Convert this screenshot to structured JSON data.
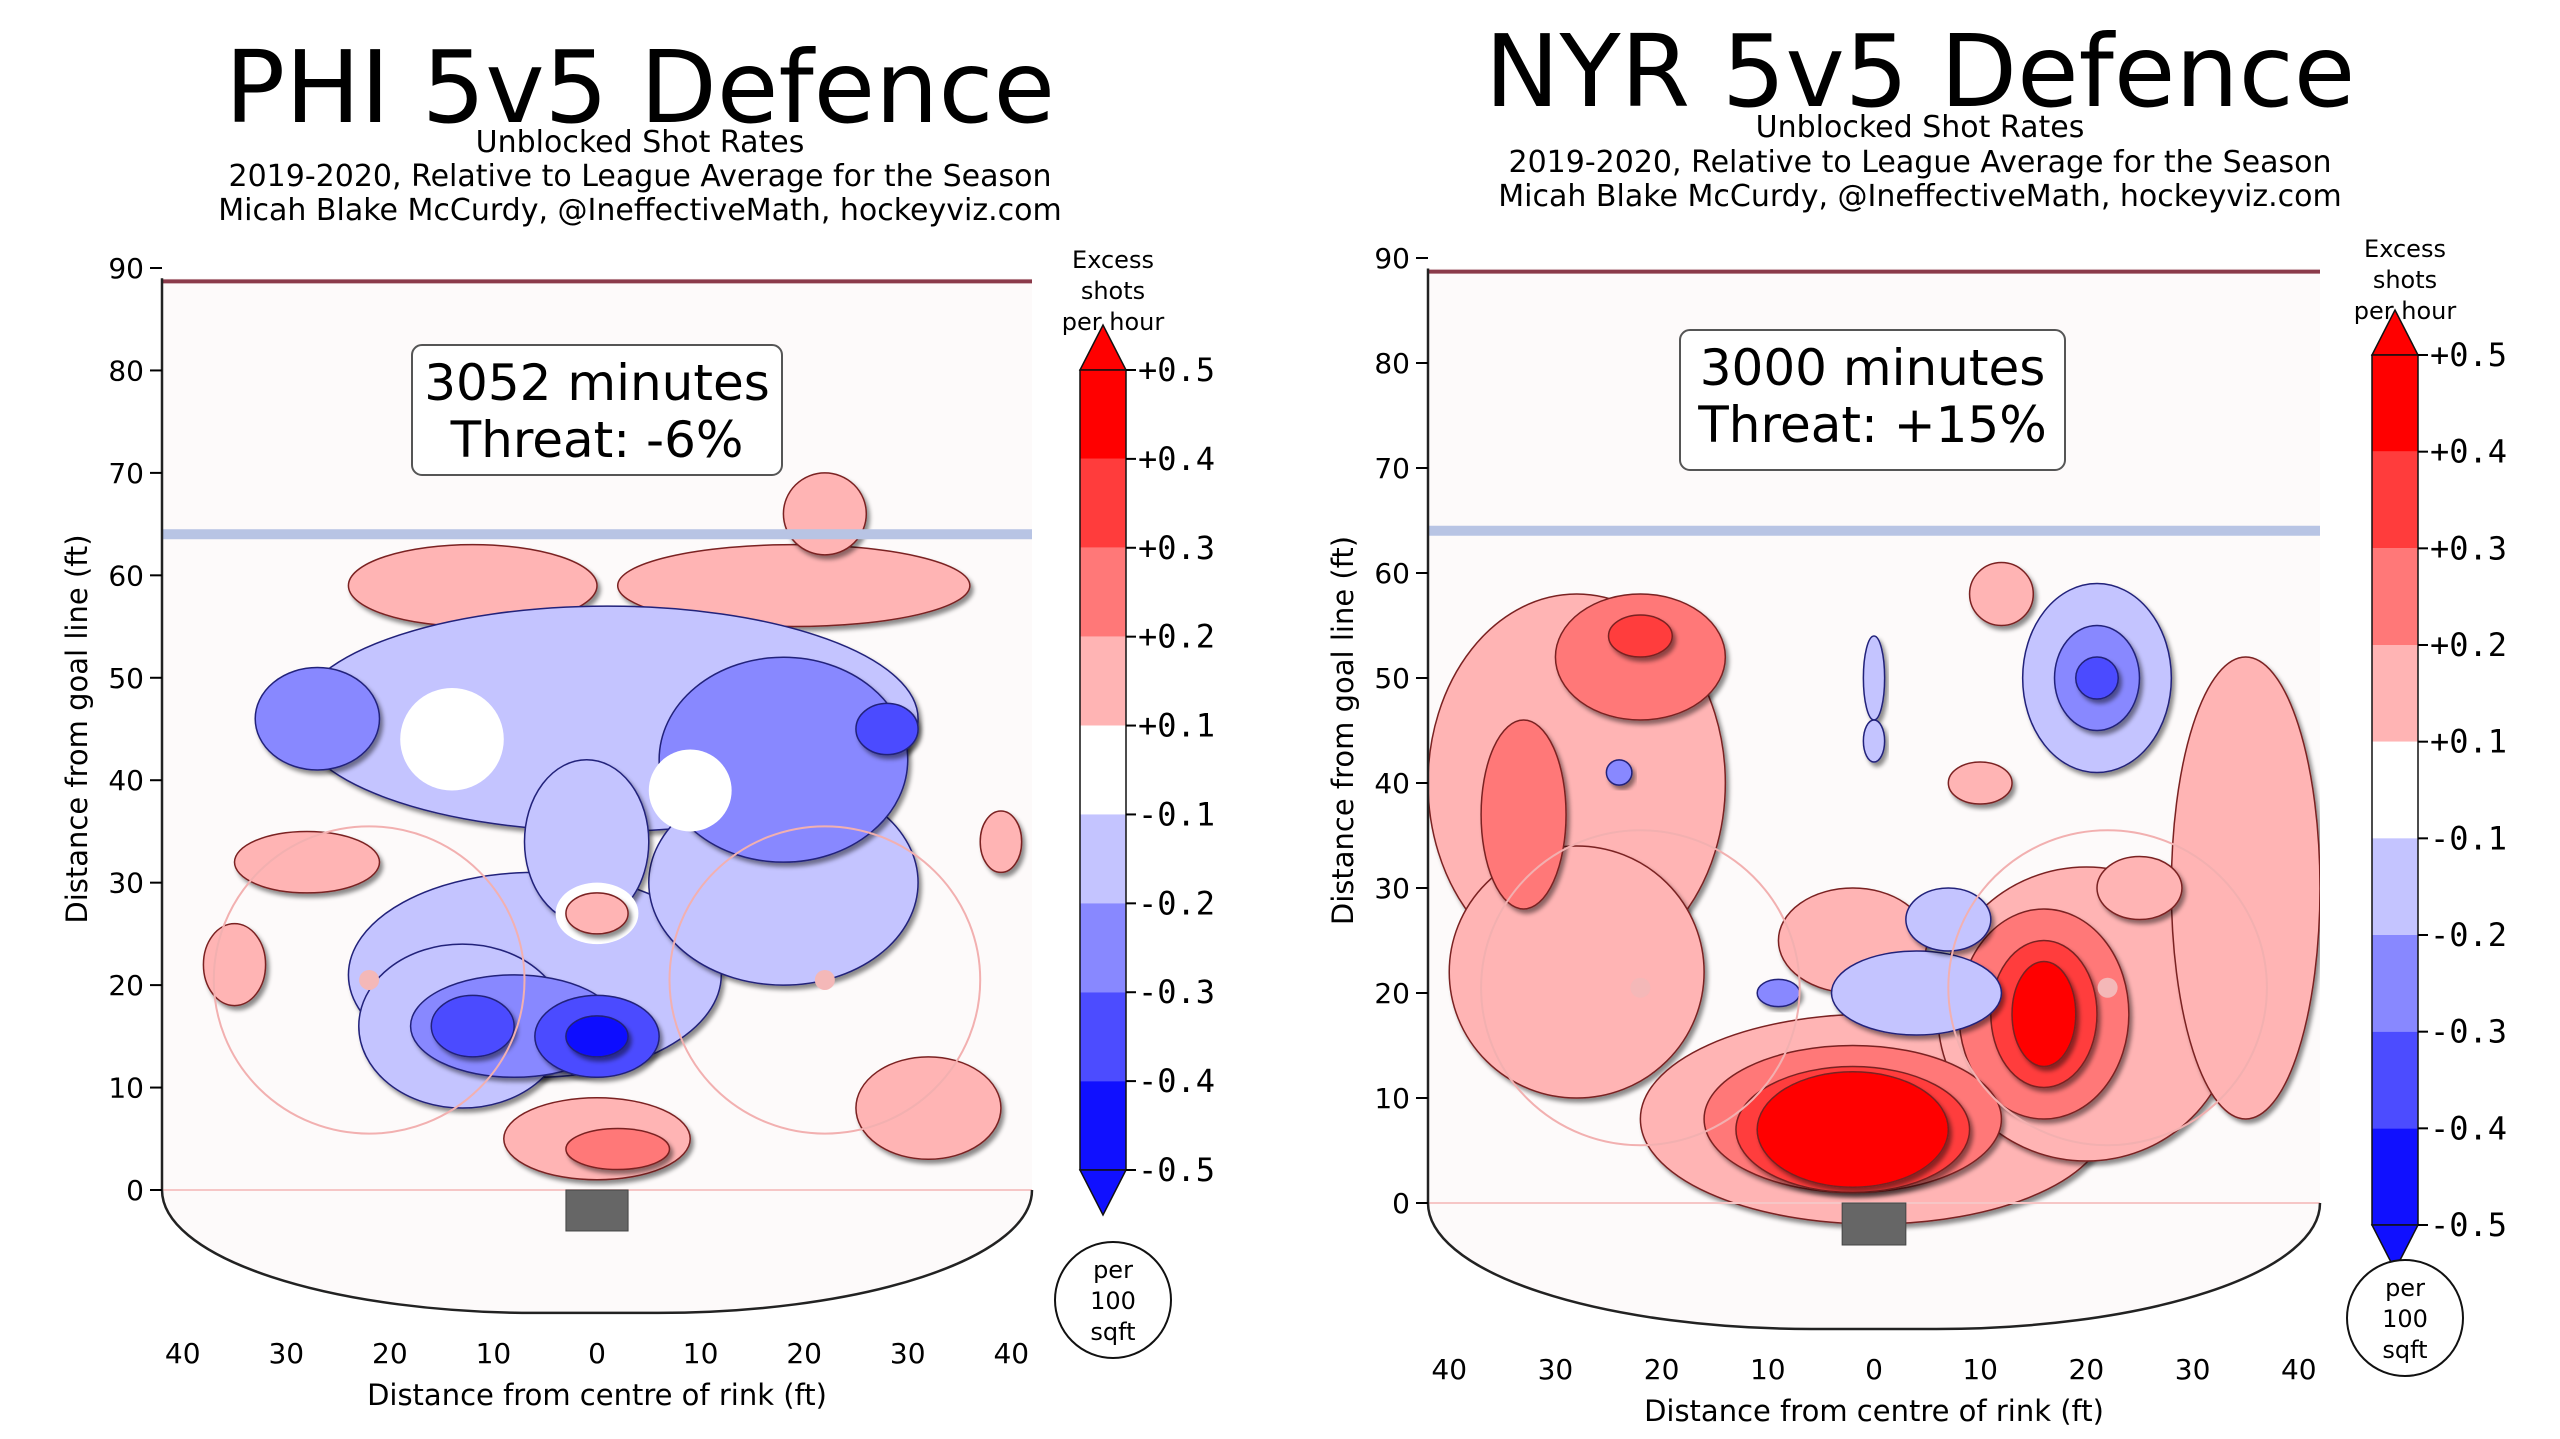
{
  "chart_data": [
    {
      "type": "heatmap",
      "title": "PHI 5v5 Defence",
      "subtitle_lines": [
        "Unblocked Shot Rates",
        "2019-2020, Relative to League Average for the Season",
        "Micah Blake McCurdy, @IneffectiveMath, hockeyviz.com"
      ],
      "xlabel": "Distance from centre of rink (ft)",
      "ylabel": "Distance from goal line (ft)",
      "xticks": [
        "40",
        "30",
        "20",
        "10",
        "0",
        "10",
        "20",
        "30",
        "40"
      ],
      "yticks": [
        "0",
        "10",
        "20",
        "30",
        "40",
        "50",
        "60",
        "70",
        "80",
        "90"
      ],
      "xlim": [
        -42,
        42
      ],
      "ylim": [
        -12,
        90
      ],
      "annotation": {
        "minutes": "3052 minutes",
        "threat": "Threat: -6%"
      },
      "colorbar": {
        "title_lines": [
          "Excess",
          "shots",
          "per hour"
        ],
        "ticks": [
          "+0.5",
          "+0.4",
          "+0.3",
          "+0.2",
          "+0.1",
          "-0.1",
          "-0.2",
          "-0.3",
          "-0.4",
          "-0.5"
        ],
        "unit_lines": [
          "per",
          "100",
          "sqft"
        ]
      },
      "blobs": [
        {
          "x": -12,
          "y": 59,
          "rx": 12,
          "ry": 4,
          "v": 0.15
        },
        {
          "x": 19,
          "y": 59,
          "rx": 17,
          "ry": 4,
          "v": 0.15
        },
        {
          "x": 22,
          "y": 66,
          "rx": 4,
          "ry": 4,
          "v": 0.15
        },
        {
          "x": 1,
          "y": 46,
          "rx": 30,
          "ry": 11,
          "v": -0.15
        },
        {
          "x": -6,
          "y": 21,
          "rx": 18,
          "ry": 10,
          "v": -0.15
        },
        {
          "x": 18,
          "y": 30,
          "rx": 13,
          "ry": 10,
          "v": -0.15
        },
        {
          "x": -1,
          "y": 34,
          "rx": 6,
          "ry": 8,
          "v": -0.15
        },
        {
          "x": -13,
          "y": 16,
          "rx": 10,
          "ry": 8,
          "v": -0.15
        },
        {
          "x": 18,
          "y": 42,
          "rx": 12,
          "ry": 10,
          "v": -0.25
        },
        {
          "x": -27,
          "y": 46,
          "rx": 6,
          "ry": 5,
          "v": -0.25
        },
        {
          "x": -8,
          "y": 16,
          "rx": 10,
          "ry": 5,
          "v": -0.25
        },
        {
          "x": 0,
          "y": 15,
          "rx": 6,
          "ry": 4,
          "v": -0.35
        },
        {
          "x": -12,
          "y": 16,
          "rx": 4,
          "ry": 3,
          "v": -0.35
        },
        {
          "x": 28,
          "y": 45,
          "rx": 3,
          "ry": 2.5,
          "v": -0.35
        },
        {
          "x": 0,
          "y": 15,
          "rx": 3,
          "ry": 2,
          "v": -0.45
        },
        {
          "x": -14,
          "y": 44,
          "rx": 5,
          "ry": 5,
          "v": 0
        },
        {
          "x": 9,
          "y": 39,
          "rx": 4,
          "ry": 4,
          "v": 0
        },
        {
          "x": 0,
          "y": 27,
          "rx": 4,
          "ry": 3,
          "v": 0
        },
        {
          "x": 0,
          "y": 27,
          "rx": 3,
          "ry": 2,
          "v": 0.15
        },
        {
          "x": 0,
          "y": 5,
          "rx": 9,
          "ry": 4,
          "v": 0.15
        },
        {
          "x": 2,
          "y": 4,
          "rx": 5,
          "ry": 2,
          "v": 0.25
        },
        {
          "x": -35,
          "y": 22,
          "rx": 3,
          "ry": 4,
          "v": 0.15
        },
        {
          "x": -28,
          "y": 32,
          "rx": 7,
          "ry": 3,
          "v": 0.15
        },
        {
          "x": 32,
          "y": 8,
          "rx": 7,
          "ry": 5,
          "v": 0.15
        },
        {
          "x": 39,
          "y": 34,
          "rx": 2,
          "ry": 3,
          "v": 0.15
        }
      ]
    },
    {
      "type": "heatmap",
      "title": "NYR 5v5 Defence",
      "subtitle_lines": [
        "Unblocked Shot Rates",
        "2019-2020, Relative to League Average for the Season",
        "Micah Blake McCurdy, @IneffectiveMath, hockeyviz.com"
      ],
      "xlabel": "Distance from centre of rink (ft)",
      "ylabel": "Distance from goal line (ft)",
      "xticks": [
        "40",
        "30",
        "20",
        "10",
        "0",
        "10",
        "20",
        "30",
        "40"
      ],
      "yticks": [
        "0",
        "10",
        "20",
        "30",
        "40",
        "50",
        "60",
        "70",
        "80",
        "90"
      ],
      "xlim": [
        -42,
        42
      ],
      "ylim": [
        -12,
        90
      ],
      "annotation": {
        "minutes": "3000 minutes",
        "threat": "Threat: +15%"
      },
      "colorbar": {
        "title_lines": [
          "Excess",
          "shots",
          "per hour"
        ],
        "ticks": [
          "+0.5",
          "+0.4",
          "+0.3",
          "+0.2",
          "+0.1",
          "-0.1",
          "-0.2",
          "-0.3",
          "-0.4",
          "-0.5"
        ],
        "unit_lines": [
          "per",
          "100",
          "sqft"
        ]
      },
      "blobs": [
        {
          "x": -28,
          "y": 40,
          "rx": 14,
          "ry": 18,
          "v": 0.15
        },
        {
          "x": -28,
          "y": 22,
          "rx": 12,
          "ry": 12,
          "v": 0.15
        },
        {
          "x": -22,
          "y": 52,
          "rx": 8,
          "ry": 6,
          "v": 0.25
        },
        {
          "x": -22,
          "y": 54,
          "rx": 3,
          "ry": 2,
          "v": 0.35
        },
        {
          "x": -33,
          "y": 37,
          "rx": 4,
          "ry": 9,
          "v": 0.25
        },
        {
          "x": 0,
          "y": 8,
          "rx": 22,
          "ry": 10,
          "v": 0.15
        },
        {
          "x": 20,
          "y": 18,
          "rx": 14,
          "ry": 14,
          "v": 0.15
        },
        {
          "x": 35,
          "y": 30,
          "rx": 7,
          "ry": 22,
          "v": 0.15
        },
        {
          "x": -2,
          "y": 25,
          "rx": 7,
          "ry": 5,
          "v": 0.15
        },
        {
          "x": 10,
          "y": 40,
          "rx": 3,
          "ry": 2,
          "v": 0.15
        },
        {
          "x": 12,
          "y": 58,
          "rx": 3,
          "ry": 3,
          "v": 0.15
        },
        {
          "x": 25,
          "y": 30,
          "rx": 4,
          "ry": 3,
          "v": 0.15
        },
        {
          "x": 16,
          "y": 18,
          "rx": 8,
          "ry": 10,
          "v": 0.25
        },
        {
          "x": 16,
          "y": 18,
          "rx": 5,
          "ry": 7,
          "v": 0.35
        },
        {
          "x": 16,
          "y": 18,
          "rx": 3,
          "ry": 5,
          "v": 0.45
        },
        {
          "x": -2,
          "y": 8,
          "rx": 14,
          "ry": 7,
          "v": 0.25
        },
        {
          "x": -2,
          "y": 7,
          "rx": 11,
          "ry": 6,
          "v": 0.35
        },
        {
          "x": -2,
          "y": 7,
          "rx": 9,
          "ry": 5.5,
          "v": 0.45
        },
        {
          "x": 21,
          "y": 50,
          "rx": 7,
          "ry": 9,
          "v": -0.15
        },
        {
          "x": 21,
          "y": 50,
          "rx": 4,
          "ry": 5,
          "v": -0.25
        },
        {
          "x": 21,
          "y": 50,
          "rx": 2,
          "ry": 2,
          "v": -0.35
        },
        {
          "x": 4,
          "y": 20,
          "rx": 8,
          "ry": 4,
          "v": -0.15
        },
        {
          "x": 7,
          "y": 27,
          "rx": 4,
          "ry": 3,
          "v": -0.15
        },
        {
          "x": -9,
          "y": 20,
          "rx": 2,
          "ry": 1.3,
          "v": -0.25
        },
        {
          "x": 0,
          "y": 50,
          "rx": 1,
          "ry": 4,
          "v": -0.15
        },
        {
          "x": 0,
          "y": 44,
          "rx": 1,
          "ry": 2,
          "v": -0.15
        },
        {
          "x": -24,
          "y": 41,
          "rx": 1.2,
          "ry": 1.2,
          "v": -0.25
        }
      ]
    }
  ]
}
